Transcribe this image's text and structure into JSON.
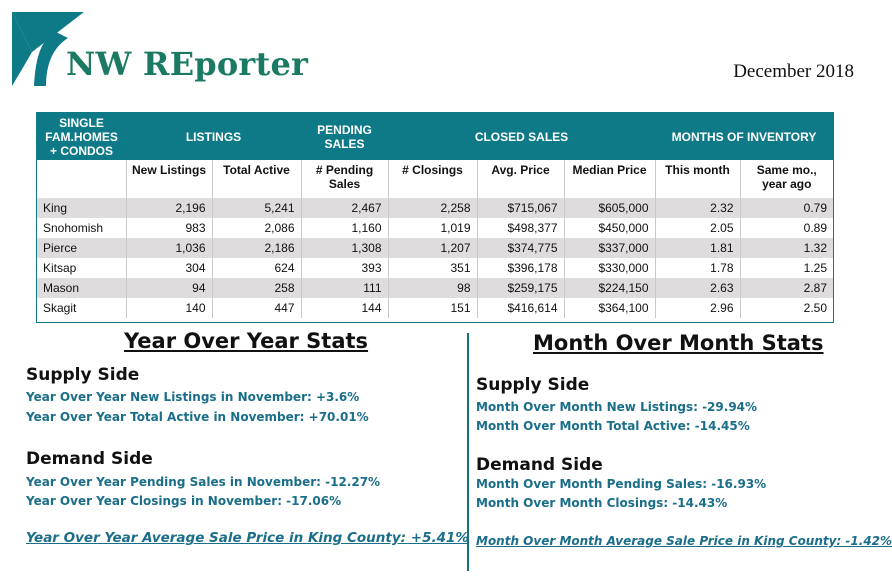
{
  "header": {
    "brand": "NW REporter",
    "date": "December 2018",
    "logo_icon": "nw-reporter-logo-icon",
    "brand_color": "#1b7a63",
    "accent_color": "#0f7a87"
  },
  "table": {
    "group_headers": {
      "category": [
        "SINGLE",
        "FAM.HOMES",
        "+ CONDOS"
      ],
      "listings": "LISTINGS",
      "pending": [
        "PENDING",
        "SALES"
      ],
      "closed": "CLOSED SALES",
      "inventory": "MONTHS OF INVENTORY"
    },
    "columns": {
      "new_listings": "New Listings",
      "total_active": "Total Active",
      "pending": [
        "# Pending",
        "Sales"
      ],
      "closings": "# Closings",
      "avg_price": "Avg. Price",
      "median_price": "Median Price",
      "this_month": "This month",
      "same_month": [
        "Same mo.,",
        "year ago"
      ]
    },
    "rows": [
      {
        "county": "King",
        "new_listings": "2,196",
        "total_active": "5,241",
        "pending": "2,467",
        "closings": "2,258",
        "avg_price": "$715,067",
        "median_price": "$605,000",
        "this_month": "2.32",
        "same_month": "0.79"
      },
      {
        "county": "Snohomish",
        "new_listings": "983",
        "total_active": "2,086",
        "pending": "1,160",
        "closings": "1,019",
        "avg_price": "$498,377",
        "median_price": "$450,000",
        "this_month": "2.05",
        "same_month": "0.89"
      },
      {
        "county": "Pierce",
        "new_listings": "1,036",
        "total_active": "2,186",
        "pending": "1,308",
        "closings": "1,207",
        "avg_price": "$374,775",
        "median_price": "$337,000",
        "this_month": "1.81",
        "same_month": "1.32"
      },
      {
        "county": "Kitsap",
        "new_listings": "304",
        "total_active": "624",
        "pending": "393",
        "closings": "351",
        "avg_price": "$396,178",
        "median_price": "$330,000",
        "this_month": "1.78",
        "same_month": "1.25"
      },
      {
        "county": "Mason",
        "new_listings": "94",
        "total_active": "258",
        "pending": "111",
        "closings": "98",
        "avg_price": "$259,175",
        "median_price": "$224,150",
        "this_month": "2.63",
        "same_month": "2.87"
      },
      {
        "county": "Skagit",
        "new_listings": "140",
        "total_active": "447",
        "pending": "144",
        "closings": "151",
        "avg_price": "$416,614",
        "median_price": "$364,100",
        "this_month": "2.96",
        "same_month": "2.50"
      }
    ]
  },
  "yoy": {
    "title": "Year Over Year Stats",
    "supply_heading": "Supply Side",
    "supply_lines": [
      "Year Over Year New Listings in November:  +3.6%",
      "Year Over Year Total Active in November:  +70.01%"
    ],
    "demand_heading": "Demand Side",
    "demand_lines": [
      "Year Over Year Pending Sales in November:  -12.27%",
      "Year Over Year Closings in November:  -17.06%"
    ],
    "avg_price_line": "Year Over Year Average Sale Price in King County:  +5.41%"
  },
  "mom": {
    "title": "Month Over Month Stats",
    "supply_heading": "Supply Side",
    "supply_lines": [
      "Month Over Month New Listings:  -29.94%",
      "Month Over Month Total Active:  -14.45%"
    ],
    "demand_heading": "Demand Side",
    "demand_lines": [
      "Month Over Month Pending Sales:  -16.93%",
      "Month Over Month Closings:  -14.43%"
    ],
    "avg_price_line": "Month Over Month Average Sale Price in King County:  -1.42%"
  }
}
